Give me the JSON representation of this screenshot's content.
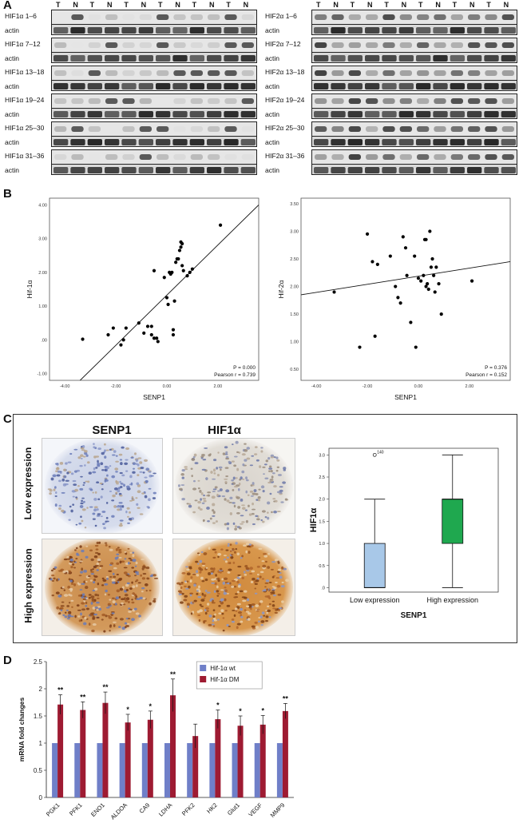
{
  "panels": {
    "a": "A",
    "b": "B",
    "c": "C",
    "d": "D"
  },
  "blot": {
    "lane_headers": [
      "T",
      "N",
      "T",
      "N",
      "T",
      "N",
      "T",
      "N",
      "T",
      "N",
      "T",
      "N"
    ],
    "left": [
      {
        "label": "HIF1α 1–6",
        "actin": "actin"
      },
      {
        "label": "HIF1α 7–12",
        "actin": "actin"
      },
      {
        "label": "HIF1α 13–18",
        "actin": "actin"
      },
      {
        "label": "HIF1α 19–24",
        "actin": "actin"
      },
      {
        "label": "HIF1α 25–30",
        "actin": "actin"
      },
      {
        "label": "HIF1α 31–36",
        "actin": "actin"
      }
    ],
    "right": [
      {
        "label": "HIF2α 1–6",
        "actin": "actin"
      },
      {
        "label": "HIF2α 7–12",
        "actin": "actin"
      },
      {
        "label": "HIF2α 13–18",
        "actin": "actin"
      },
      {
        "label": "HIF2α 19–24",
        "actin": "actin"
      },
      {
        "label": "HIF2α 25–30",
        "actin": "actin"
      },
      {
        "label": "HIF2α 31–36",
        "actin": "actin"
      }
    ]
  },
  "chart_data": [
    {
      "type": "scatter",
      "title": "",
      "xlabel": "SENP1",
      "ylabel": "Hif-1α",
      "xlim": [
        -4.6,
        3.6
      ],
      "ylim": [
        -1.2,
        4.2
      ],
      "xticks": [
        "-4.00",
        "-2.00",
        "0.00",
        "2.00"
      ],
      "xtick_values": [
        -4,
        -2,
        0,
        2
      ],
      "yticks": [
        "-1.00",
        ".00",
        "1.00",
        "2.00",
        "3.00",
        "4.00"
      ],
      "ytick_values": [
        -1,
        0,
        1,
        2,
        3,
        4
      ],
      "annotation_p": "P = 0.000",
      "annotation_r": "Pearson r = 0.739",
      "fit": {
        "x": [
          -3.4,
          3.6
        ],
        "y": [
          -1.2,
          4.0
        ]
      },
      "points": [
        [
          -3.3,
          0.02
        ],
        [
          -2.3,
          0.15
        ],
        [
          -2.1,
          0.35
        ],
        [
          -1.8,
          -0.15
        ],
        [
          -1.7,
          0.0
        ],
        [
          -1.6,
          0.35
        ],
        [
          -1.1,
          0.5
        ],
        [
          -0.9,
          0.2
        ],
        [
          -0.75,
          0.4
        ],
        [
          -0.6,
          0.4
        ],
        [
          -0.6,
          0.15
        ],
        [
          -0.5,
          0.05
        ],
        [
          -0.4,
          0.05
        ],
        [
          -0.35,
          -0.05
        ],
        [
          -0.5,
          2.05
        ],
        [
          -0.1,
          1.85
        ],
        [
          0.0,
          1.25
        ],
        [
          0.05,
          1.05
        ],
        [
          0.1,
          2.0
        ],
        [
          0.15,
          1.95
        ],
        [
          0.2,
          2.0
        ],
        [
          0.25,
          0.15
        ],
        [
          0.25,
          0.3
        ],
        [
          0.3,
          1.15
        ],
        [
          0.35,
          2.3
        ],
        [
          0.4,
          2.4
        ],
        [
          0.45,
          2.4
        ],
        [
          0.5,
          2.65
        ],
        [
          0.55,
          2.75
        ],
        [
          0.55,
          2.9
        ],
        [
          0.6,
          2.85
        ],
        [
          0.6,
          2.2
        ],
        [
          0.65,
          2.05
        ],
        [
          0.8,
          1.9
        ],
        [
          0.9,
          2.0
        ],
        [
          1.0,
          2.1
        ],
        [
          2.1,
          3.4
        ]
      ]
    },
    {
      "type": "scatter",
      "title": "",
      "xlabel": "SENP1",
      "ylabel": "Hif-2α",
      "xlim": [
        -4.6,
        3.6
      ],
      "ylim": [
        0.3,
        3.6
      ],
      "xticks": [
        "-4.00",
        "-2.00",
        "0.00",
        "2.00"
      ],
      "xtick_values": [
        -4,
        -2,
        0,
        2
      ],
      "yticks": [
        "0.50",
        "1.00",
        "1.50",
        "2.00",
        "2.50",
        "3.00",
        "3.50"
      ],
      "ytick_values": [
        0.5,
        1,
        1.5,
        2,
        2.5,
        3,
        3.5
      ],
      "annotation_p": "P = 0.376",
      "annotation_r": "Pearson r = 0.152",
      "fit": {
        "x": [
          -4.6,
          3.6
        ],
        "y": [
          1.85,
          2.45
        ]
      },
      "points": [
        [
          -3.3,
          1.9
        ],
        [
          -2.3,
          0.9
        ],
        [
          -2.0,
          2.95
        ],
        [
          -1.8,
          2.45
        ],
        [
          -1.6,
          2.4
        ],
        [
          -1.7,
          1.1
        ],
        [
          -1.1,
          2.55
        ],
        [
          -0.9,
          2.0
        ],
        [
          -0.8,
          1.8
        ],
        [
          -0.7,
          1.7
        ],
        [
          -0.6,
          2.9
        ],
        [
          -0.5,
          2.7
        ],
        [
          -0.45,
          2.2
        ],
        [
          -0.3,
          1.35
        ],
        [
          -0.15,
          2.55
        ],
        [
          -0.1,
          0.9
        ],
        [
          0.0,
          2.15
        ],
        [
          0.1,
          2.1
        ],
        [
          0.2,
          2.2
        ],
        [
          0.25,
          2.85
        ],
        [
          0.3,
          2.85
        ],
        [
          0.35,
          2.05
        ],
        [
          0.3,
          2.0
        ],
        [
          0.4,
          1.95
        ],
        [
          0.45,
          3.0
        ],
        [
          0.5,
          2.35
        ],
        [
          0.55,
          2.5
        ],
        [
          0.6,
          2.2
        ],
        [
          0.65,
          1.9
        ],
        [
          0.7,
          2.35
        ],
        [
          0.8,
          2.05
        ],
        [
          0.9,
          1.5
        ],
        [
          2.1,
          2.1
        ]
      ]
    },
    {
      "type": "box",
      "xlabel": "SENP1",
      "ylabel": "HIF1α",
      "categories": [
        "Low expression",
        "High expression"
      ],
      "ylim": [
        -0.1,
        3.15
      ],
      "yticks": [
        ".0",
        "0.5",
        "1.0",
        "1.5",
        "2.0",
        "2.5",
        "3.0"
      ],
      "ytick_values": [
        0,
        0.5,
        1,
        1.5,
        2,
        2.5,
        3
      ],
      "boxes": [
        {
          "name": "Low expression",
          "min": 0,
          "q1": 0,
          "median": 0,
          "q3": 1,
          "max": 2,
          "outlier": 3,
          "outlier_label": "140",
          "color": "#a8c8e8"
        },
        {
          "name": "High expression",
          "min": 0,
          "q1": 1,
          "median": 2,
          "q3": 2,
          "max": 3,
          "color": "#1fa84f"
        }
      ]
    },
    {
      "type": "bar",
      "ylabel": "mRNA fold changes",
      "ylim": [
        0,
        2.5
      ],
      "yticks": [
        "0",
        "0.5",
        "1",
        "1.5",
        "2",
        "2.5"
      ],
      "ytick_values": [
        0,
        0.5,
        1,
        1.5,
        2,
        2.5
      ],
      "categories": [
        "PGK1",
        "PFK1",
        "ENO1",
        "ALDOA",
        "CA9",
        "LDHA",
        "PFK2",
        "HK2",
        "Glut1",
        "VEGF",
        "MMP9"
      ],
      "series": [
        {
          "name": "Hif-1α  wt",
          "color": "#6f7fc8",
          "values": [
            1,
            1,
            1,
            1,
            1,
            1,
            1,
            1,
            1,
            1,
            1
          ],
          "errors": [
            0,
            0,
            0,
            0,
            0,
            0,
            0,
            0,
            0,
            0,
            0
          ]
        },
        {
          "name": "Hif-1α  DM",
          "color": "#9e1b32",
          "values": [
            1.71,
            1.61,
            1.74,
            1.38,
            1.43,
            1.88,
            1.13,
            1.44,
            1.32,
            1.34,
            1.59
          ],
          "errors": [
            0.18,
            0.15,
            0.2,
            0.15,
            0.16,
            0.3,
            0.22,
            0.17,
            0.18,
            0.17,
            0.14
          ]
        }
      ],
      "significance": [
        "**",
        "**",
        "**",
        "*",
        "*",
        "**",
        "",
        "*",
        "*",
        "*",
        "**"
      ]
    }
  ],
  "ihc": {
    "col_senp1": "SENP1",
    "col_hif1a": "HIF1α",
    "row_low": "Low expression",
    "row_high": "High expression"
  }
}
